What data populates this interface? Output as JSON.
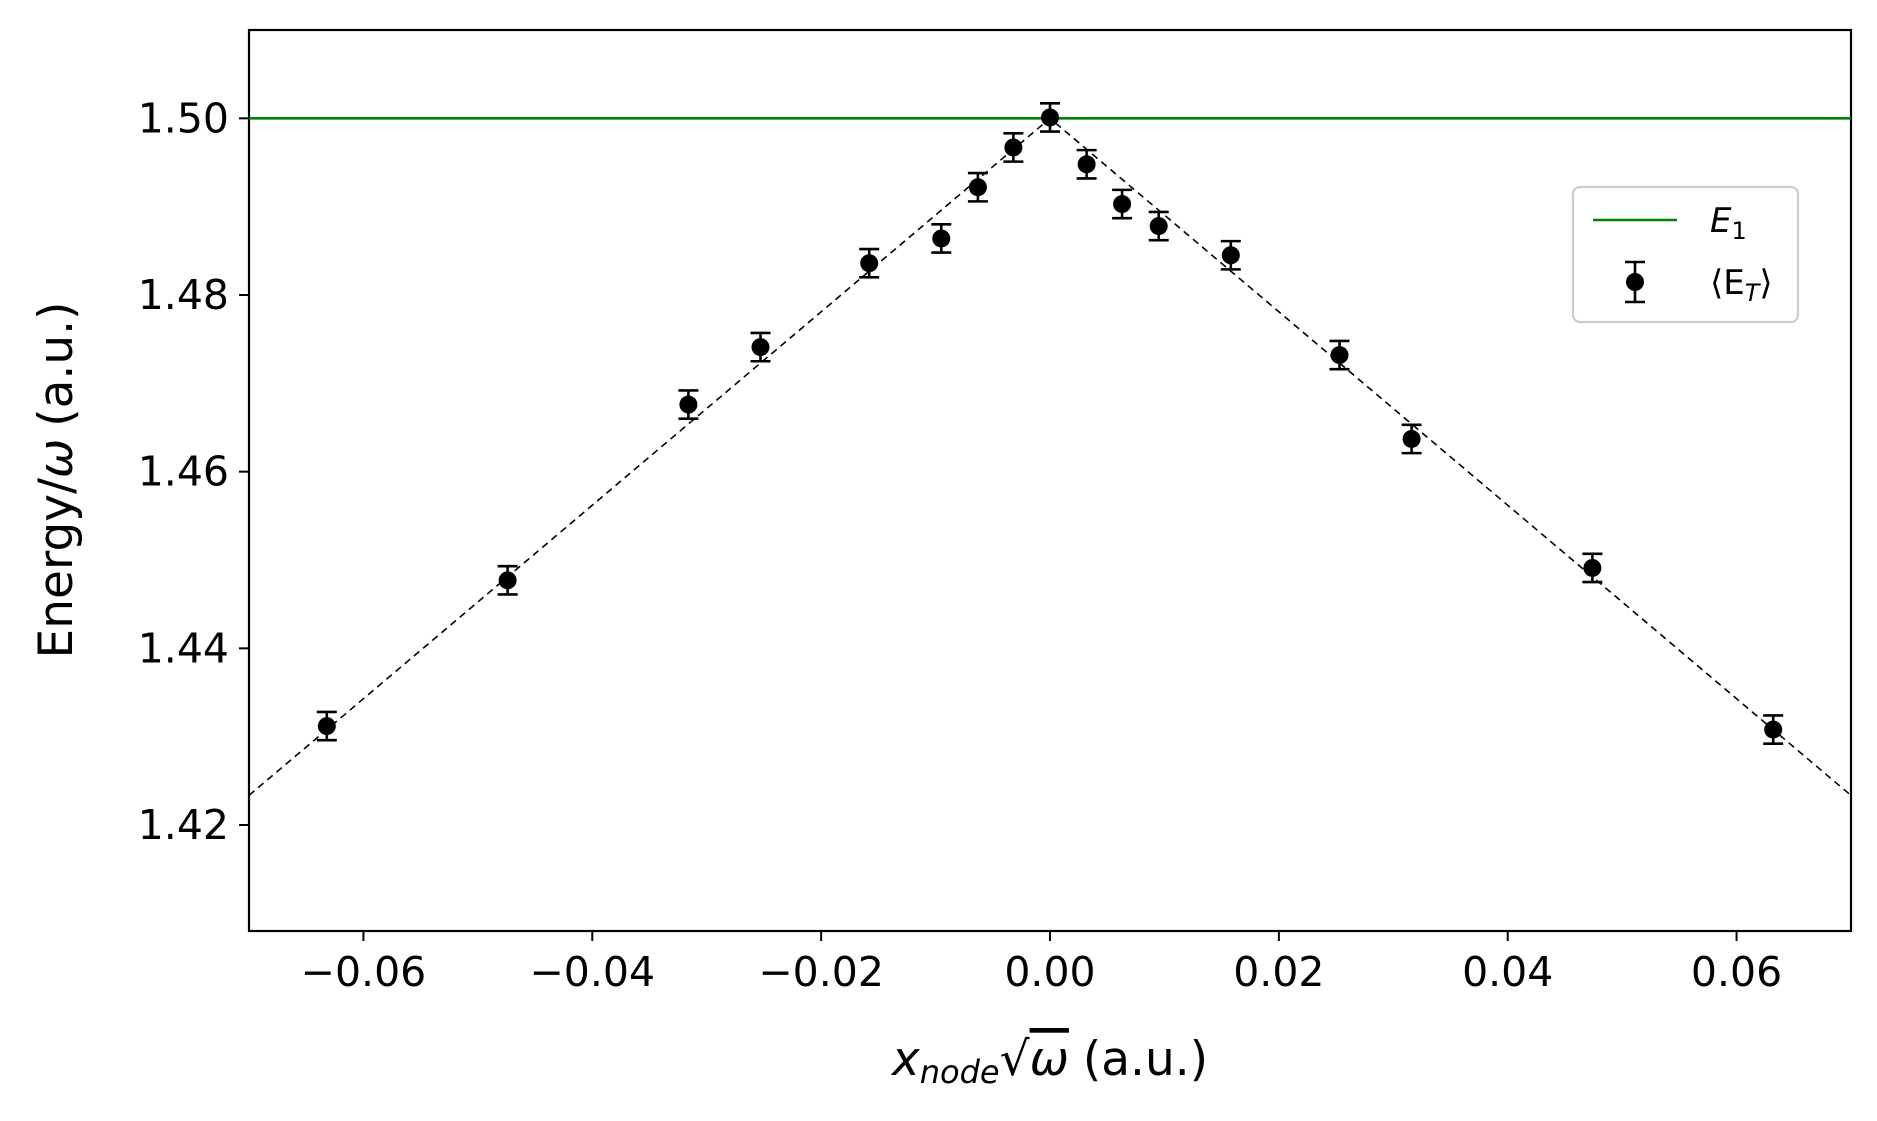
{
  "chart_data": {
    "type": "scatter",
    "xlabel": {
      "var": "x",
      "sub": "node",
      "mid": "√",
      "omega": "ω",
      "units": "(a.u.)"
    },
    "ylabel": {
      "prefix": "Energy/",
      "omega": "ω",
      "units": "(a.u.)"
    },
    "xlim": [
      -0.07,
      0.07
    ],
    "ylim": [
      1.408,
      1.51
    ],
    "xticks": [
      -0.06,
      -0.04,
      -0.02,
      0.0,
      0.02,
      0.04,
      0.06
    ],
    "xtick_labels": [
      "−0.06",
      "−0.04",
      "−0.02",
      "0.00",
      "0.02",
      "0.04",
      "0.06"
    ],
    "yticks": [
      1.42,
      1.44,
      1.46,
      1.48,
      1.5
    ],
    "ytick_labels": [
      "1.42",
      "1.44",
      "1.46",
      "1.48",
      "1.50"
    ],
    "reference_line": {
      "name": "E",
      "sub": "1",
      "y": 1.5,
      "color": "#008000"
    },
    "fit_line": {
      "style": "dashed",
      "color": "#000000",
      "peak_x": 0.0,
      "peak_y": 1.5,
      "slope": 1.095
    },
    "series": [
      {
        "name": "⟨E",
        "sub": "T",
        "close": "⟩",
        "color": "#000000",
        "x": [
          -0.0632,
          -0.0474,
          -0.0316,
          -0.0253,
          -0.0158,
          -0.0095,
          -0.0063,
          -0.0032,
          0.0,
          0.0032,
          0.0063,
          0.0095,
          0.0158,
          0.0253,
          0.0316,
          0.0474,
          0.0632
        ],
        "y": [
          1.4312,
          1.4477,
          1.4676,
          1.4741,
          1.4836,
          1.4864,
          1.4922,
          1.4967,
          1.5001,
          1.4948,
          1.4903,
          1.4878,
          1.4845,
          1.4732,
          1.4637,
          1.4491,
          1.4308
        ],
        "err": [
          0.0016,
          0.0016,
          0.0016,
          0.0016,
          0.0016,
          0.0016,
          0.0016,
          0.0016,
          0.0016,
          0.0016,
          0.0016,
          0.0016,
          0.0016,
          0.0016,
          0.0016,
          0.0016,
          0.0016
        ]
      }
    ]
  }
}
